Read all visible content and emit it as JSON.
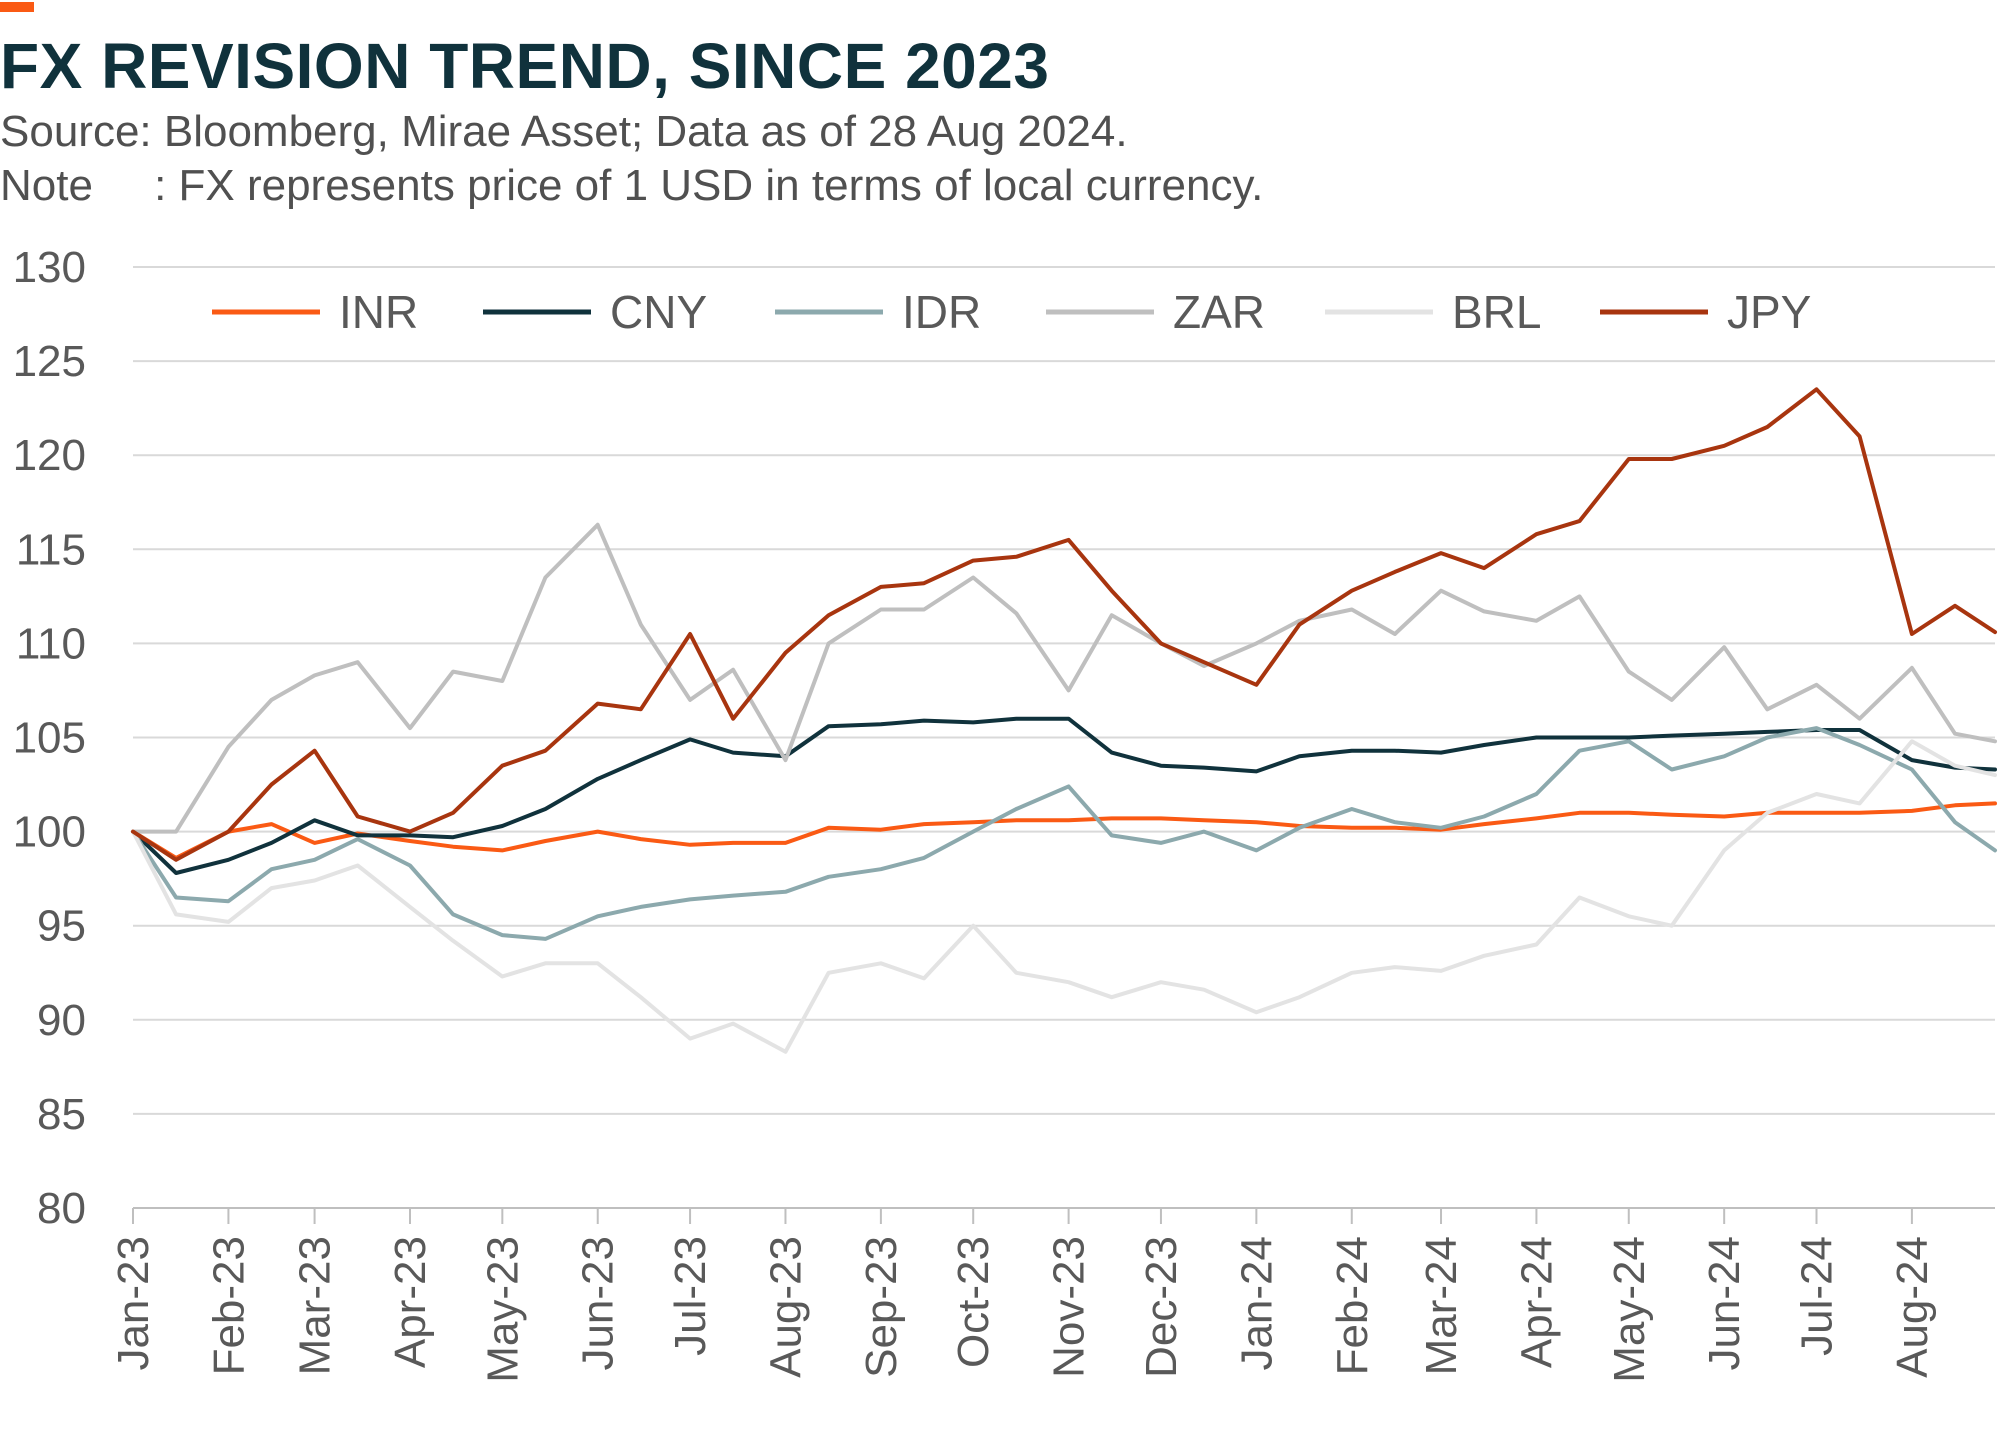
{
  "header": {
    "title": "FX REVISION TREND, SINCE 2023",
    "source": "Source: Bloomberg, Mirae Asset; Data as of 28 Aug 2024.",
    "note": "Note     : FX represents price of 1 USD in terms of local currency."
  },
  "colors": {
    "accent": "#fa5a14",
    "title": "#10323c",
    "grid": "#d9d9d9",
    "axis_text": "#595959"
  },
  "chart_data": {
    "type": "line",
    "title": "FX REVISION TREND, SINCE 2023",
    "xlabel": "",
    "ylabel": "",
    "ylim": [
      80,
      130
    ],
    "yticks": [
      80,
      85,
      90,
      95,
      100,
      105,
      110,
      115,
      120,
      125,
      130
    ],
    "grid": "horizontal",
    "legend": "top",
    "x_ticks": [
      "Jan-23",
      "Feb-23",
      "Mar-23",
      "Apr-23",
      "May-23",
      "Jun-23",
      "Jul-23",
      "Aug-23",
      "Sep-23",
      "Oct-23",
      "Nov-23",
      "Dec-23",
      "Jan-24",
      "Feb-24",
      "Mar-24",
      "Apr-24",
      "May-24",
      "Jun-24",
      "Jul-24",
      "Aug-24"
    ],
    "x_range": [
      "2023-01-01",
      "2024-08-28"
    ],
    "series": [
      {
        "name": "INR",
        "color": "#fa5a14",
        "width": 4,
        "x": [
          "2023-01-01",
          "2023-01-15",
          "2023-02-01",
          "2023-02-15",
          "2023-03-01",
          "2023-03-15",
          "2023-04-01",
          "2023-04-15",
          "2023-05-01",
          "2023-05-15",
          "2023-06-01",
          "2023-06-15",
          "2023-07-01",
          "2023-07-15",
          "2023-08-01",
          "2023-08-15",
          "2023-09-01",
          "2023-09-15",
          "2023-10-01",
          "2023-10-15",
          "2023-11-01",
          "2023-11-15",
          "2023-12-01",
          "2023-12-15",
          "2024-01-01",
          "2024-01-15",
          "2024-02-01",
          "2024-02-15",
          "2024-03-01",
          "2024-03-15",
          "2024-04-01",
          "2024-04-15",
          "2024-05-01",
          "2024-05-15",
          "2024-06-01",
          "2024-06-15",
          "2024-07-01",
          "2024-07-15",
          "2024-08-01",
          "2024-08-15",
          "2024-08-28"
        ],
        "values": [
          100,
          98.6,
          100.0,
          100.4,
          99.4,
          99.9,
          99.5,
          99.2,
          99.0,
          99.5,
          100.0,
          99.6,
          99.3,
          99.4,
          99.4,
          100.2,
          100.1,
          100.4,
          100.5,
          100.6,
          100.6,
          100.7,
          100.7,
          100.6,
          100.5,
          100.3,
          100.2,
          100.2,
          100.1,
          100.4,
          100.7,
          101.0,
          101.0,
          100.9,
          100.8,
          101.0,
          101.0,
          101.0,
          101.1,
          101.4,
          101.5
        ]
      },
      {
        "name": "CNY",
        "color": "#10323c",
        "width": 4,
        "x": [
          "2023-01-01",
          "2023-01-15",
          "2023-02-01",
          "2023-02-15",
          "2023-03-01",
          "2023-03-15",
          "2023-04-01",
          "2023-04-15",
          "2023-05-01",
          "2023-05-15",
          "2023-06-01",
          "2023-06-15",
          "2023-07-01",
          "2023-07-15",
          "2023-08-01",
          "2023-08-15",
          "2023-09-01",
          "2023-09-15",
          "2023-10-01",
          "2023-10-15",
          "2023-11-01",
          "2023-11-15",
          "2023-12-01",
          "2023-12-15",
          "2024-01-01",
          "2024-01-15",
          "2024-02-01",
          "2024-02-15",
          "2024-03-01",
          "2024-03-15",
          "2024-04-01",
          "2024-04-15",
          "2024-05-01",
          "2024-05-15",
          "2024-06-01",
          "2024-06-15",
          "2024-07-01",
          "2024-07-15",
          "2024-08-01",
          "2024-08-15",
          "2024-08-28"
        ],
        "values": [
          100,
          97.8,
          98.5,
          99.4,
          100.6,
          99.8,
          99.8,
          99.7,
          100.3,
          101.2,
          102.8,
          103.8,
          104.9,
          104.2,
          104.0,
          105.6,
          105.7,
          105.9,
          105.8,
          106.0,
          106.0,
          104.2,
          103.5,
          103.4,
          103.2,
          104.0,
          104.3,
          104.3,
          104.2,
          104.6,
          105.0,
          105.0,
          105.0,
          105.1,
          105.2,
          105.3,
          105.4,
          105.4,
          103.8,
          103.4,
          103.3
        ]
      },
      {
        "name": "IDR",
        "color": "#8ca9ad",
        "width": 4,
        "x": [
          "2023-01-01",
          "2023-01-15",
          "2023-02-01",
          "2023-02-15",
          "2023-03-01",
          "2023-03-15",
          "2023-04-01",
          "2023-04-15",
          "2023-05-01",
          "2023-05-15",
          "2023-06-01",
          "2023-06-15",
          "2023-07-01",
          "2023-07-15",
          "2023-08-01",
          "2023-08-15",
          "2023-09-01",
          "2023-09-15",
          "2023-10-01",
          "2023-10-15",
          "2023-11-01",
          "2023-11-15",
          "2023-12-01",
          "2023-12-15",
          "2024-01-01",
          "2024-01-15",
          "2024-02-01",
          "2024-02-15",
          "2024-03-01",
          "2024-03-15",
          "2024-04-01",
          "2024-04-15",
          "2024-05-01",
          "2024-05-15",
          "2024-06-01",
          "2024-06-15",
          "2024-07-01",
          "2024-07-15",
          "2024-08-01",
          "2024-08-15",
          "2024-08-28"
        ],
        "values": [
          100,
          96.5,
          96.3,
          98.0,
          98.5,
          99.6,
          98.2,
          95.6,
          94.5,
          94.3,
          95.5,
          96.0,
          96.4,
          96.6,
          96.8,
          97.6,
          98.0,
          98.6,
          100.0,
          101.2,
          102.4,
          99.8,
          99.4,
          100.0,
          99.0,
          100.2,
          101.2,
          100.5,
          100.2,
          100.8,
          102.0,
          104.3,
          104.8,
          103.3,
          104.0,
          105.0,
          105.5,
          104.6,
          103.3,
          100.5,
          99.0
        ]
      },
      {
        "name": "ZAR",
        "color": "#bfbfbf",
        "width": 4,
        "x": [
          "2023-01-01",
          "2023-01-15",
          "2023-02-01",
          "2023-02-15",
          "2023-03-01",
          "2023-03-15",
          "2023-04-01",
          "2023-04-15",
          "2023-05-01",
          "2023-05-15",
          "2023-06-01",
          "2023-06-15",
          "2023-07-01",
          "2023-07-15",
          "2023-08-01",
          "2023-08-15",
          "2023-09-01",
          "2023-09-15",
          "2023-10-01",
          "2023-10-15",
          "2023-11-01",
          "2023-11-15",
          "2023-12-01",
          "2023-12-15",
          "2024-01-01",
          "2024-01-15",
          "2024-02-01",
          "2024-02-15",
          "2024-03-01",
          "2024-03-15",
          "2024-04-01",
          "2024-04-15",
          "2024-05-01",
          "2024-05-15",
          "2024-06-01",
          "2024-06-15",
          "2024-07-01",
          "2024-07-15",
          "2024-08-01",
          "2024-08-15",
          "2024-08-28"
        ],
        "values": [
          100,
          100.0,
          104.5,
          107.0,
          108.3,
          109.0,
          105.5,
          108.5,
          108.0,
          113.5,
          116.3,
          111.0,
          107.0,
          108.6,
          103.8,
          110.0,
          111.8,
          111.8,
          113.5,
          111.6,
          107.5,
          111.5,
          110.0,
          108.8,
          110.0,
          111.2,
          111.8,
          110.5,
          112.8,
          111.7,
          111.2,
          112.5,
          108.5,
          107.0,
          109.8,
          106.5,
          107.8,
          106.0,
          108.7,
          105.2,
          104.8
        ]
      },
      {
        "name": "BRL",
        "color": "#e3e3e3",
        "width": 4,
        "x": [
          "2023-01-01",
          "2023-01-15",
          "2023-02-01",
          "2023-02-15",
          "2023-03-01",
          "2023-03-15",
          "2023-04-01",
          "2023-04-15",
          "2023-05-01",
          "2023-05-15",
          "2023-06-01",
          "2023-06-15",
          "2023-07-01",
          "2023-07-15",
          "2023-08-01",
          "2023-08-15",
          "2023-09-01",
          "2023-09-15",
          "2023-10-01",
          "2023-10-15",
          "2023-11-01",
          "2023-11-15",
          "2023-12-01",
          "2023-12-15",
          "2024-01-01",
          "2024-01-15",
          "2024-02-01",
          "2024-02-15",
          "2024-03-01",
          "2024-03-15",
          "2024-04-01",
          "2024-04-15",
          "2024-05-01",
          "2024-05-15",
          "2024-06-01",
          "2024-06-15",
          "2024-07-01",
          "2024-07-15",
          "2024-08-01",
          "2024-08-15",
          "2024-08-28"
        ],
        "values": [
          100,
          95.6,
          95.2,
          97.0,
          97.4,
          98.2,
          96.0,
          94.2,
          92.3,
          93.0,
          93.0,
          91.2,
          89.0,
          89.8,
          88.3,
          92.5,
          93.0,
          92.2,
          95.0,
          92.5,
          92.0,
          91.2,
          92.0,
          91.6,
          90.4,
          91.2,
          92.5,
          92.8,
          92.6,
          93.4,
          94.0,
          96.5,
          95.5,
          95.0,
          99.0,
          101.0,
          102.0,
          101.5,
          104.8,
          103.5,
          103.0
        ]
      },
      {
        "name": "JPY",
        "color": "#a8350f",
        "width": 4,
        "x": [
          "2023-01-01",
          "2023-01-15",
          "2023-02-01",
          "2023-02-15",
          "2023-03-01",
          "2023-03-15",
          "2023-04-01",
          "2023-04-15",
          "2023-05-01",
          "2023-05-15",
          "2023-06-01",
          "2023-06-15",
          "2023-07-01",
          "2023-07-15",
          "2023-08-01",
          "2023-08-15",
          "2023-09-01",
          "2023-09-15",
          "2023-10-01",
          "2023-10-15",
          "2023-11-01",
          "2023-11-15",
          "2023-12-01",
          "2023-12-15",
          "2024-01-01",
          "2024-01-15",
          "2024-02-01",
          "2024-02-15",
          "2024-03-01",
          "2024-03-15",
          "2024-04-01",
          "2024-04-15",
          "2024-05-01",
          "2024-05-15",
          "2024-06-01",
          "2024-06-15",
          "2024-07-01",
          "2024-07-15",
          "2024-08-01",
          "2024-08-15",
          "2024-08-28"
        ],
        "values": [
          100,
          98.5,
          100.0,
          102.5,
          104.3,
          100.8,
          100.0,
          101.0,
          103.5,
          104.3,
          106.8,
          106.5,
          110.5,
          106.0,
          109.5,
          111.5,
          113.0,
          113.2,
          114.4,
          114.6,
          115.5,
          112.8,
          110.0,
          109.0,
          107.8,
          111.0,
          112.8,
          113.8,
          114.8,
          114.0,
          115.8,
          116.5,
          119.8,
          119.8,
          120.5,
          121.5,
          123.5,
          121.0,
          110.5,
          112.0,
          110.6
        ]
      }
    ]
  }
}
